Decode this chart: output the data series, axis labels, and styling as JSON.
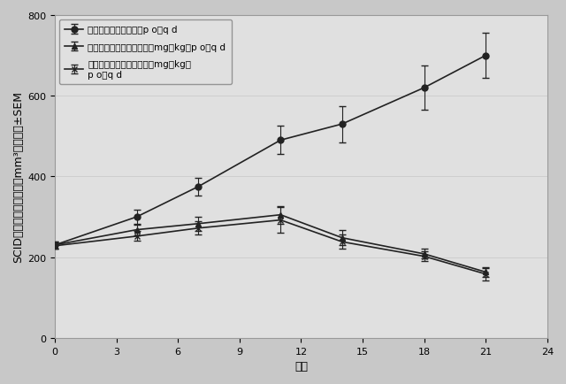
{
  "xlabel": "日数",
  "ylabel_line1": "SCIDマウスの腫瘻体積（mm³）、平均±SEM",
  "x": [
    0,
    4,
    7,
    11,
    14,
    18,
    21
  ],
  "vehicle_y": [
    230,
    300,
    375,
    490,
    530,
    620,
    700
  ],
  "vehicle_err": [
    8,
    18,
    22,
    35,
    45,
    55,
    55
  ],
  "ex30_y": [
    230,
    268,
    283,
    305,
    248,
    208,
    163
  ],
  "ex30_err": [
    8,
    13,
    18,
    22,
    18,
    12,
    12
  ],
  "ex50_y": [
    228,
    252,
    272,
    292,
    238,
    202,
    158
  ],
  "ex50_err": [
    8,
    12,
    16,
    32,
    18,
    12,
    15
  ],
  "vehicle_label": "ビヒクル、２１日間、p o、q d",
  "ex30_label": "実施例１、２１日間、３０mg／kg、p o、q d",
  "ex50_label": "実施例１、２１日間、５０mg／kg、\np o、q d",
  "xlim": [
    0,
    24
  ],
  "ylim": [
    0,
    800
  ],
  "xticks": [
    0,
    3,
    6,
    9,
    12,
    15,
    18,
    21,
    24
  ],
  "yticks": [
    0,
    200,
    400,
    600,
    800
  ],
  "background_color": "#c8c8c8",
  "plot_bg_color": "#e0e0e0",
  "line_color": "#222222",
  "linewidth": 1.2,
  "markersize": 5,
  "capsize": 3,
  "fontsize_label": 9,
  "fontsize_tick": 8,
  "fontsize_legend": 7.5
}
